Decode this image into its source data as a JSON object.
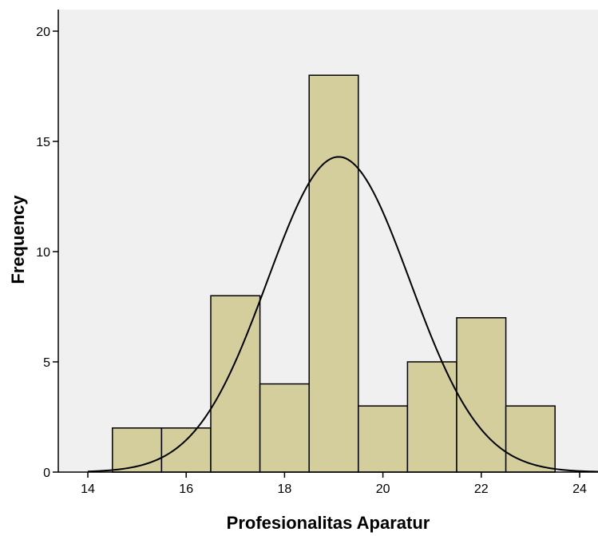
{
  "chart_data": {
    "type": "bar",
    "subtype": "histogram",
    "xlabel": "Profesionalitas Aparatur",
    "ylabel": "Frequency",
    "xlim": [
      13.5,
      24.4
    ],
    "ylim": [
      0,
      21
    ],
    "x_ticks": [
      14,
      16,
      18,
      20,
      22,
      24
    ],
    "y_ticks": [
      0,
      5,
      10,
      15,
      20
    ],
    "bins": [
      {
        "start": 14.5,
        "end": 15.5,
        "value": 2
      },
      {
        "start": 15.5,
        "end": 16.5,
        "value": 2
      },
      {
        "start": 16.5,
        "end": 17.5,
        "value": 8
      },
      {
        "start": 17.5,
        "end": 18.5,
        "value": 4
      },
      {
        "start": 18.5,
        "end": 19.5,
        "value": 18
      },
      {
        "start": 19.5,
        "end": 20.5,
        "value": 3
      },
      {
        "start": 20.5,
        "end": 21.5,
        "value": 5
      },
      {
        "start": 21.5,
        "end": 22.5,
        "value": 7
      },
      {
        "start": 22.5,
        "end": 23.5,
        "value": 3
      }
    ],
    "normal_curve": {
      "mean": 19.1,
      "std_dev": 1.45,
      "peak": 14.3
    },
    "colors": {
      "bar_fill": "#d3ce9b",
      "plot_background": "#f0f0f0"
    },
    "grid": false,
    "legend": "none"
  }
}
